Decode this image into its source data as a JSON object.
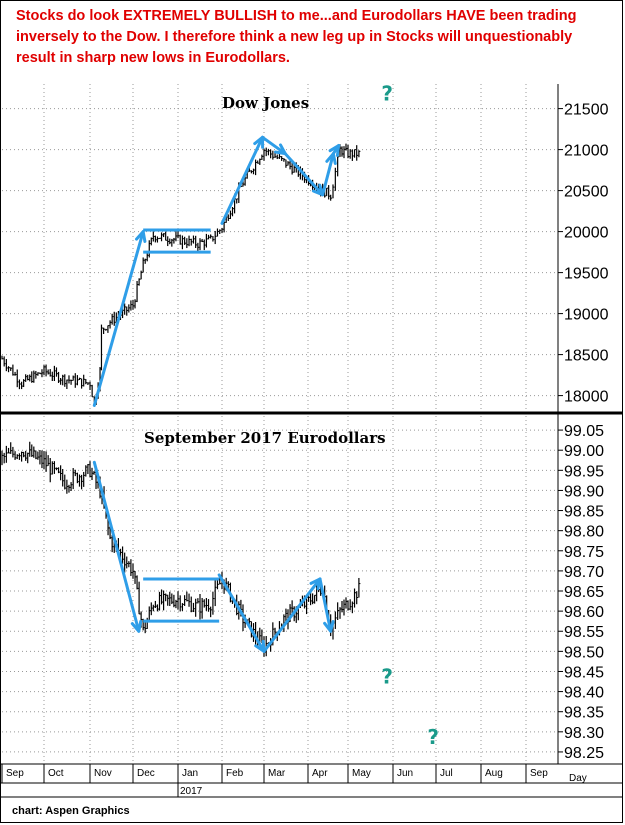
{
  "headline": "Stocks do look EXTREMELY BULLISH to me...and Eurodollars HAVE been trading inversely to the Dow. I therefore think a new leg up in Stocks will unquestionably result in sharp new lows in Eurodollars.",
  "credit": "chart: Aspen Graphics",
  "colors": {
    "headline": "#e00000",
    "arrows": "#2f9ee8",
    "question_marks": "#1a9a8a",
    "bars": "#000000"
  },
  "question_mark_icon": "?",
  "chart_data": [
    {
      "type": "ohlc",
      "title": "Dow Jones",
      "y_ticks": [
        18000,
        18500,
        19000,
        19500,
        20000,
        20500,
        21000,
        21500
      ],
      "ylim": [
        17800,
        21800
      ],
      "grid": true,
      "x_months": [
        "Sep",
        "Oct",
        "Nov",
        "Dec",
        "Jan",
        "Feb",
        "Mar",
        "Apr",
        "May",
        "Jun",
        "Jul",
        "Aug",
        "Sep"
      ],
      "x_year": "2017",
      "x_axis_extra": "Day",
      "series": [
        {
          "x": [
            "2016-09-01",
            "2016-09-15",
            "2016-10-01",
            "2016-10-15",
            "2016-11-01",
            "2016-11-04",
            "2016-11-08",
            "2016-11-09",
            "2016-11-15",
            "2016-12-01",
            "2016-12-08",
            "2016-12-15",
            "2017-01-01",
            "2017-01-15",
            "2017-01-24",
            "2017-02-01",
            "2017-02-15",
            "2017-03-01",
            "2017-03-15",
            "2017-03-31",
            "2017-04-12",
            "2017-04-18",
            "2017-04-25",
            "2017-05-01",
            "2017-05-10"
          ],
          "close": [
            18450,
            18150,
            18300,
            18200,
            18150,
            17900,
            18300,
            18800,
            18900,
            19100,
            19600,
            19950,
            19900,
            19850,
            19900,
            20050,
            20600,
            21000,
            20850,
            20650,
            20500,
            20450,
            21000,
            20950,
            20950
          ]
        }
      ],
      "annotations": {
        "trend_arrows": [
          {
            "from": [
              "2016-11-04",
              17880
            ],
            "to": [
              "2016-12-08",
              20000
            ]
          },
          {
            "from": [
              "2017-02-01",
              20100
            ],
            "to": [
              "2017-02-28",
              21150
            ]
          },
          {
            "from": [
              "2017-02-28",
              21150
            ],
            "to": [
              "2017-03-16",
              20950
            ]
          },
          {
            "from": [
              "2017-03-16",
              20950
            ],
            "to": [
              "2017-04-12",
              20450
            ]
          },
          {
            "from": [
              "2017-04-12",
              20450
            ],
            "to": [
              "2017-04-20",
              20950
            ]
          },
          {
            "from": [
              "2017-04-20",
              20950
            ],
            "to": [
              "2017-04-24",
              21050
            ]
          }
        ],
        "range_lines": [
          {
            "from": [
              "2016-12-08",
              20020
            ],
            "to": [
              "2017-01-24",
              20020
            ]
          },
          {
            "from": [
              "2016-12-08",
              19750
            ],
            "to": [
              "2017-01-24",
              19750
            ]
          }
        ],
        "question_marks": [
          [
            "2017-05-24",
            21600
          ]
        ]
      }
    },
    {
      "type": "ohlc",
      "title": "September 2017 Eurodollars",
      "y_ticks": [
        98.25,
        98.3,
        98.35,
        98.4,
        98.45,
        98.5,
        98.55,
        98.6,
        98.65,
        98.7,
        98.75,
        98.8,
        98.85,
        98.9,
        98.95,
        99.0,
        99.05
      ],
      "ylim": [
        98.22,
        99.09
      ],
      "grid": true,
      "series": [
        {
          "x": [
            "2016-09-01",
            "2016-09-15",
            "2016-10-01",
            "2016-10-15",
            "2016-11-01",
            "2016-11-08",
            "2016-11-15",
            "2016-12-01",
            "2016-12-08",
            "2016-12-15",
            "2017-01-01",
            "2017-01-15",
            "2017-01-24",
            "2017-02-01",
            "2017-02-15",
            "2017-03-01",
            "2017-03-15",
            "2017-03-31",
            "2017-04-12",
            "2017-04-18",
            "2017-04-25",
            "2017-05-01",
            "2017-05-10"
          ],
          "close": [
            98.98,
            99.0,
            98.97,
            98.92,
            98.95,
            98.9,
            98.78,
            98.7,
            98.55,
            98.62,
            98.63,
            98.61,
            98.62,
            98.68,
            98.58,
            98.51,
            98.58,
            98.62,
            98.66,
            98.56,
            98.6,
            98.62,
            98.66
          ]
        }
      ],
      "annotations": {
        "trend_arrows": [
          {
            "from": [
              "2016-11-04",
              98.97
            ],
            "to": [
              "2016-12-05",
              98.55
            ]
          },
          {
            "from": [
              "2017-01-30",
              98.69
            ],
            "to": [
              "2017-03-01",
              98.5
            ]
          },
          {
            "from": [
              "2017-03-01",
              98.5
            ],
            "to": [
              "2017-04-10",
              98.68
            ]
          },
          {
            "from": [
              "2017-04-10",
              98.68
            ],
            "to": [
              "2017-04-18",
              98.55
            ]
          }
        ],
        "range_lines": [
          {
            "from": [
              "2016-12-08",
              98.68
            ],
            "to": [
              "2017-01-30",
              98.68
            ]
          },
          {
            "from": [
              "2016-12-08",
              98.575
            ],
            "to": [
              "2017-01-30",
              98.575
            ]
          }
        ],
        "question_marks": [
          [
            "2017-05-24",
            98.42
          ],
          [
            "2017-06-25",
            98.27
          ]
        ]
      }
    }
  ]
}
